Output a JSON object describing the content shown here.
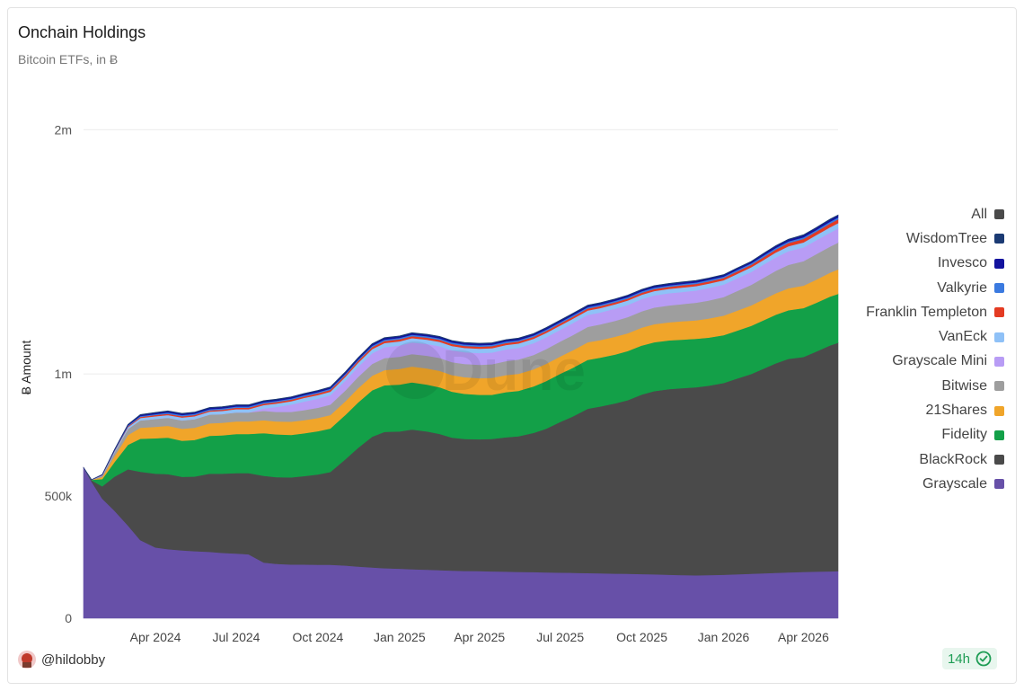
{
  "header": {
    "title": "Onchain Holdings",
    "subtitle": "Bitcoin ETFs, in Ƀ"
  },
  "footer": {
    "user": "@hildobby",
    "freshness": "14h"
  },
  "watermark": "Dune",
  "chart_data": {
    "type": "area",
    "stacked": true,
    "ylabel": "Ƀ Amount",
    "ylim": [
      0,
      2200000
    ],
    "yticks": [
      {
        "value": 0,
        "label": "0"
      },
      {
        "value": 500000,
        "label": "500k"
      },
      {
        "value": 1000000,
        "label": "1m"
      },
      {
        "value": 2000000,
        "label": "2m"
      }
    ],
    "x_start": "2024-01-11",
    "x_end": "2026-05-10",
    "xticks": [
      {
        "date": "2024-04-01",
        "label": "Apr 2024"
      },
      {
        "date": "2024-07-01",
        "label": "Jul 2024"
      },
      {
        "date": "2024-10-01",
        "label": "Oct 2024"
      },
      {
        "date": "2025-01-01",
        "label": "Jan 2025"
      },
      {
        "date": "2025-04-01",
        "label": "Apr 2025"
      },
      {
        "date": "2025-07-01",
        "label": "Jul 2025"
      },
      {
        "date": "2025-10-01",
        "label": "Oct 2025"
      },
      {
        "date": "2026-01-01",
        "label": "Jan 2026"
      },
      {
        "date": "2026-04-01",
        "label": "Apr 2026"
      }
    ],
    "dates": [
      "2024-01-11",
      "2024-01-20",
      "2024-02-01",
      "2024-02-15",
      "2024-03-01",
      "2024-03-15",
      "2024-04-01",
      "2024-04-15",
      "2024-05-01",
      "2024-05-15",
      "2024-06-01",
      "2024-06-15",
      "2024-07-01",
      "2024-07-15",
      "2024-08-01",
      "2024-08-15",
      "2024-09-01",
      "2024-09-15",
      "2024-10-01",
      "2024-10-15",
      "2024-11-01",
      "2024-11-15",
      "2024-12-01",
      "2024-12-15",
      "2025-01-01",
      "2025-01-15",
      "2025-02-01",
      "2025-02-15",
      "2025-03-01",
      "2025-03-15",
      "2025-04-01",
      "2025-04-15",
      "2025-05-01",
      "2025-05-15",
      "2025-06-01",
      "2025-06-15",
      "2025-07-01",
      "2025-07-15",
      "2025-08-01",
      "2025-08-15",
      "2025-09-01",
      "2025-09-15",
      "2025-10-01",
      "2025-10-15",
      "2025-11-01",
      "2025-11-15",
      "2025-12-01",
      "2025-12-15",
      "2026-01-01",
      "2026-01-15",
      "2026-02-01",
      "2026-02-15",
      "2026-03-01",
      "2026-03-15",
      "2026-04-01",
      "2026-04-15",
      "2026-05-01",
      "2026-05-10"
    ],
    "series": [
      {
        "name": "Grayscale",
        "color": "#6750a8",
        "values": [
          617000,
          560000,
          490000,
          440000,
          380000,
          320000,
          290000,
          283000,
          278000,
          275000,
          272000,
          268000,
          265000,
          262000,
          228000,
          223000,
          220000,
          220000,
          219000,
          219000,
          216000,
          212000,
          208000,
          205000,
          203000,
          201000,
          199000,
          197000,
          195000,
          194000,
          193000,
          192000,
          191000,
          190000,
          189000,
          188000,
          187000,
          186000,
          185000,
          184000,
          183000,
          182000,
          181000,
          180000,
          178000,
          177000,
          176000,
          177000,
          178000,
          180000,
          182000,
          184000,
          186000,
          188000,
          190000,
          191000,
          192000,
          193000
        ]
      },
      {
        "name": "BlackRock",
        "color": "#4a4a4a",
        "values": [
          0,
          5000,
          50000,
          140000,
          230000,
          280000,
          302000,
          307000,
          301000,
          305000,
          320000,
          324000,
          329000,
          332000,
          355000,
          355000,
          357000,
          362000,
          370000,
          380000,
          435000,
          485000,
          535000,
          558000,
          562000,
          572000,
          566000,
          558000,
          545000,
          540000,
          540000,
          542000,
          550000,
          555000,
          570000,
          588000,
          617000,
          640000,
          673000,
          683000,
          697000,
          711000,
          735000,
          750000,
          760000,
          765000,
          770000,
          775000,
          785000,
          800000,
          818000,
          838000,
          858000,
          874000,
          880000,
          900000,
          925000,
          935000
        ]
      },
      {
        "name": "Fidelity",
        "color": "#13a048",
        "values": [
          0,
          2000,
          30000,
          60000,
          100000,
          135000,
          145000,
          150000,
          148000,
          150000,
          155000,
          157000,
          160000,
          160000,
          175000,
          175000,
          174000,
          175000,
          177000,
          178000,
          182000,
          186000,
          190000,
          191000,
          192000,
          193000,
          192000,
          191000,
          188000,
          185000,
          182000,
          181000,
          185000,
          186000,
          190000,
          195000,
          197000,
          199000,
          200000,
          200000,
          200000,
          201000,
          201000,
          200000,
          200000,
          199000,
          198000,
          197000,
          196000,
          196000,
          197000,
          198000,
          199000,
          199000,
          200000,
          200000,
          200000,
          200000
        ]
      },
      {
        "name": "21Shares",
        "color": "#f0a52a",
        "values": [
          0,
          0,
          8000,
          25000,
          40000,
          45000,
          47000,
          48000,
          49000,
          50000,
          51000,
          51000,
          52000,
          52000,
          53000,
          53000,
          54000,
          54000,
          54000,
          55000,
          56000,
          58000,
          60000,
          62000,
          64000,
          65000,
          66000,
          67000,
          68000,
          68000,
          68000,
          69000,
          70000,
          70000,
          70000,
          71000,
          71000,
          72000,
          72000,
          72000,
          73000,
          73000,
          73000,
          74000,
          74000,
          75000,
          76000,
          78000,
          80000,
          82000,
          84000,
          86000,
          88000,
          90000,
          92000,
          95000,
          98000,
          100000
        ]
      },
      {
        "name": "Bitwise",
        "color": "#9e9e9e",
        "values": [
          0,
          0,
          5000,
          15000,
          25000,
          30000,
          32000,
          33000,
          34000,
          35000,
          36000,
          36000,
          37000,
          37000,
          38000,
          39000,
          40000,
          41000,
          42000,
          43000,
          44000,
          46000,
          48000,
          49000,
          50000,
          51000,
          52000,
          53000,
          53000,
          54000,
          55000,
          56000,
          57000,
          58000,
          59000,
          60000,
          61000,
          62000,
          63000,
          64000,
          65000,
          66000,
          67000,
          68000,
          69000,
          70000,
          72000,
          74000,
          76000,
          80000,
          84000,
          88000,
          92000,
          96000,
          100000,
          104000,
          107000,
          110000
        ]
      },
      {
        "name": "Grayscale Mini",
        "color": "#b89cf5",
        "values": [
          0,
          0,
          0,
          0,
          0,
          0,
          0,
          0,
          0,
          0,
          0,
          0,
          0,
          0,
          10000,
          20000,
          30000,
          35000,
          37000,
          38000,
          40000,
          42000,
          44000,
          45000,
          46000,
          47000,
          48000,
          48000,
          48000,
          48000,
          48000,
          48000,
          48000,
          48000,
          48000,
          48000,
          48000,
          49000,
          49000,
          49000,
          50000,
          50000,
          50000,
          50000,
          50000,
          50000,
          50000,
          51000,
          51000,
          52000,
          53000,
          54000,
          55000,
          56000,
          56000,
          57000,
          57000,
          58000
        ]
      },
      {
        "name": "VanEck",
        "color": "#8fc1f7",
        "values": [
          0,
          0,
          2000,
          5000,
          8000,
          10000,
          11000,
          11000,
          12000,
          12000,
          12000,
          13000,
          13000,
          13000,
          14000,
          14000,
          14000,
          15000,
          15000,
          15000,
          16000,
          16000,
          17000,
          17000,
          17000,
          18000,
          18000,
          18000,
          18000,
          18000,
          18000,
          18000,
          18000,
          18000,
          18000,
          18000,
          18000,
          18000,
          18000,
          18000,
          18000,
          18000,
          18000,
          18000,
          18000,
          18000,
          18000,
          18000,
          18000,
          18000,
          19000,
          19000,
          20000,
          20000,
          21000,
          21000,
          22000,
          22000
        ]
      },
      {
        "name": "Franklin Templeton",
        "color": "#e43b22",
        "values": [
          0,
          0,
          1000,
          2000,
          3000,
          4000,
          5000,
          5000,
          5000,
          5000,
          5000,
          5000,
          6000,
          6000,
          6000,
          6000,
          6000,
          6000,
          7000,
          7000,
          7000,
          8000,
          8000,
          8000,
          8000,
          8000,
          8000,
          8000,
          8000,
          8000,
          8000,
          8000,
          8000,
          8000,
          8000,
          8000,
          8000,
          8000,
          8000,
          8000,
          8000,
          8000,
          8000,
          8000,
          8000,
          9000,
          9000,
          9000,
          9000,
          10000,
          10000,
          11000,
          12000,
          13000,
          14000,
          14000,
          15000,
          15000
        ]
      },
      {
        "name": "Valkyrie",
        "color": "#3b7ae0",
        "values": [
          0,
          0,
          1000,
          2000,
          3000,
          4000,
          4000,
          5000,
          5000,
          5000,
          5000,
          5000,
          5000,
          5000,
          5000,
          5000,
          5000,
          5000,
          5000,
          5000,
          5000,
          5000,
          6000,
          6000,
          6000,
          6000,
          6000,
          6000,
          6000,
          6000,
          6000,
          6000,
          6000,
          6000,
          6000,
          6000,
          6000,
          6000,
          6000,
          6000,
          6000,
          6000,
          6000,
          6000,
          6000,
          6000,
          6000,
          6000,
          6000,
          6000,
          6000,
          7000,
          7000,
          7000,
          7000,
          7000,
          8000,
          8000
        ]
      },
      {
        "name": "Invesco",
        "color": "#13139e",
        "values": [
          0,
          0,
          1000,
          2000,
          3000,
          4000,
          5000,
          5000,
          5000,
          5000,
          5000,
          5000,
          5000,
          5000,
          5000,
          5000,
          5000,
          5000,
          5000,
          5000,
          6000,
          6000,
          6000,
          6000,
          6000,
          6000,
          6000,
          6000,
          6000,
          6000,
          6000,
          6000,
          6000,
          6000,
          6000,
          6000,
          6000,
          6000,
          6000,
          6000,
          6000,
          6000,
          6000,
          6000,
          6000,
          6000,
          6000,
          6000,
          6000,
          6000,
          6000,
          7000,
          7000,
          7000,
          8000,
          8000,
          8000,
          8000
        ]
      },
      {
        "name": "WisdomTree",
        "color": "#1b3a73",
        "values": [
          0,
          0,
          500,
          1000,
          1500,
          2000,
          2000,
          2000,
          2000,
          2000,
          2000,
          2000,
          2000,
          2000,
          2000,
          2000,
          2000,
          2000,
          2000,
          2000,
          2000,
          2000,
          2000,
          2000,
          2000,
          2000,
          2000,
          2000,
          2000,
          2000,
          2000,
          2000,
          2000,
          2000,
          2000,
          2000,
          2000,
          2000,
          2000,
          2000,
          2000,
          2000,
          2000,
          2000,
          2000,
          2000,
          2000,
          2000,
          2000,
          2000,
          2000,
          2000,
          2000,
          2000,
          2000,
          2000,
          2000,
          2000
        ]
      }
    ],
    "legend": [
      {
        "name": "All",
        "color": "#4a4a4a"
      },
      {
        "name": "WisdomTree",
        "color": "#1b3a73"
      },
      {
        "name": "Invesco",
        "color": "#13139e"
      },
      {
        "name": "Valkyrie",
        "color": "#3b7ae0"
      },
      {
        "name": "Franklin Templeton",
        "color": "#e43b22"
      },
      {
        "name": "VanEck",
        "color": "#8fc1f7"
      },
      {
        "name": "Grayscale Mini",
        "color": "#b89cf5"
      },
      {
        "name": "Bitwise",
        "color": "#9e9e9e"
      },
      {
        "name": "21Shares",
        "color": "#f0a52a"
      },
      {
        "name": "Fidelity",
        "color": "#13a048"
      },
      {
        "name": "BlackRock",
        "color": "#4a4a4a"
      },
      {
        "name": "Grayscale",
        "color": "#6750a8"
      }
    ],
    "legend_position": "right"
  }
}
